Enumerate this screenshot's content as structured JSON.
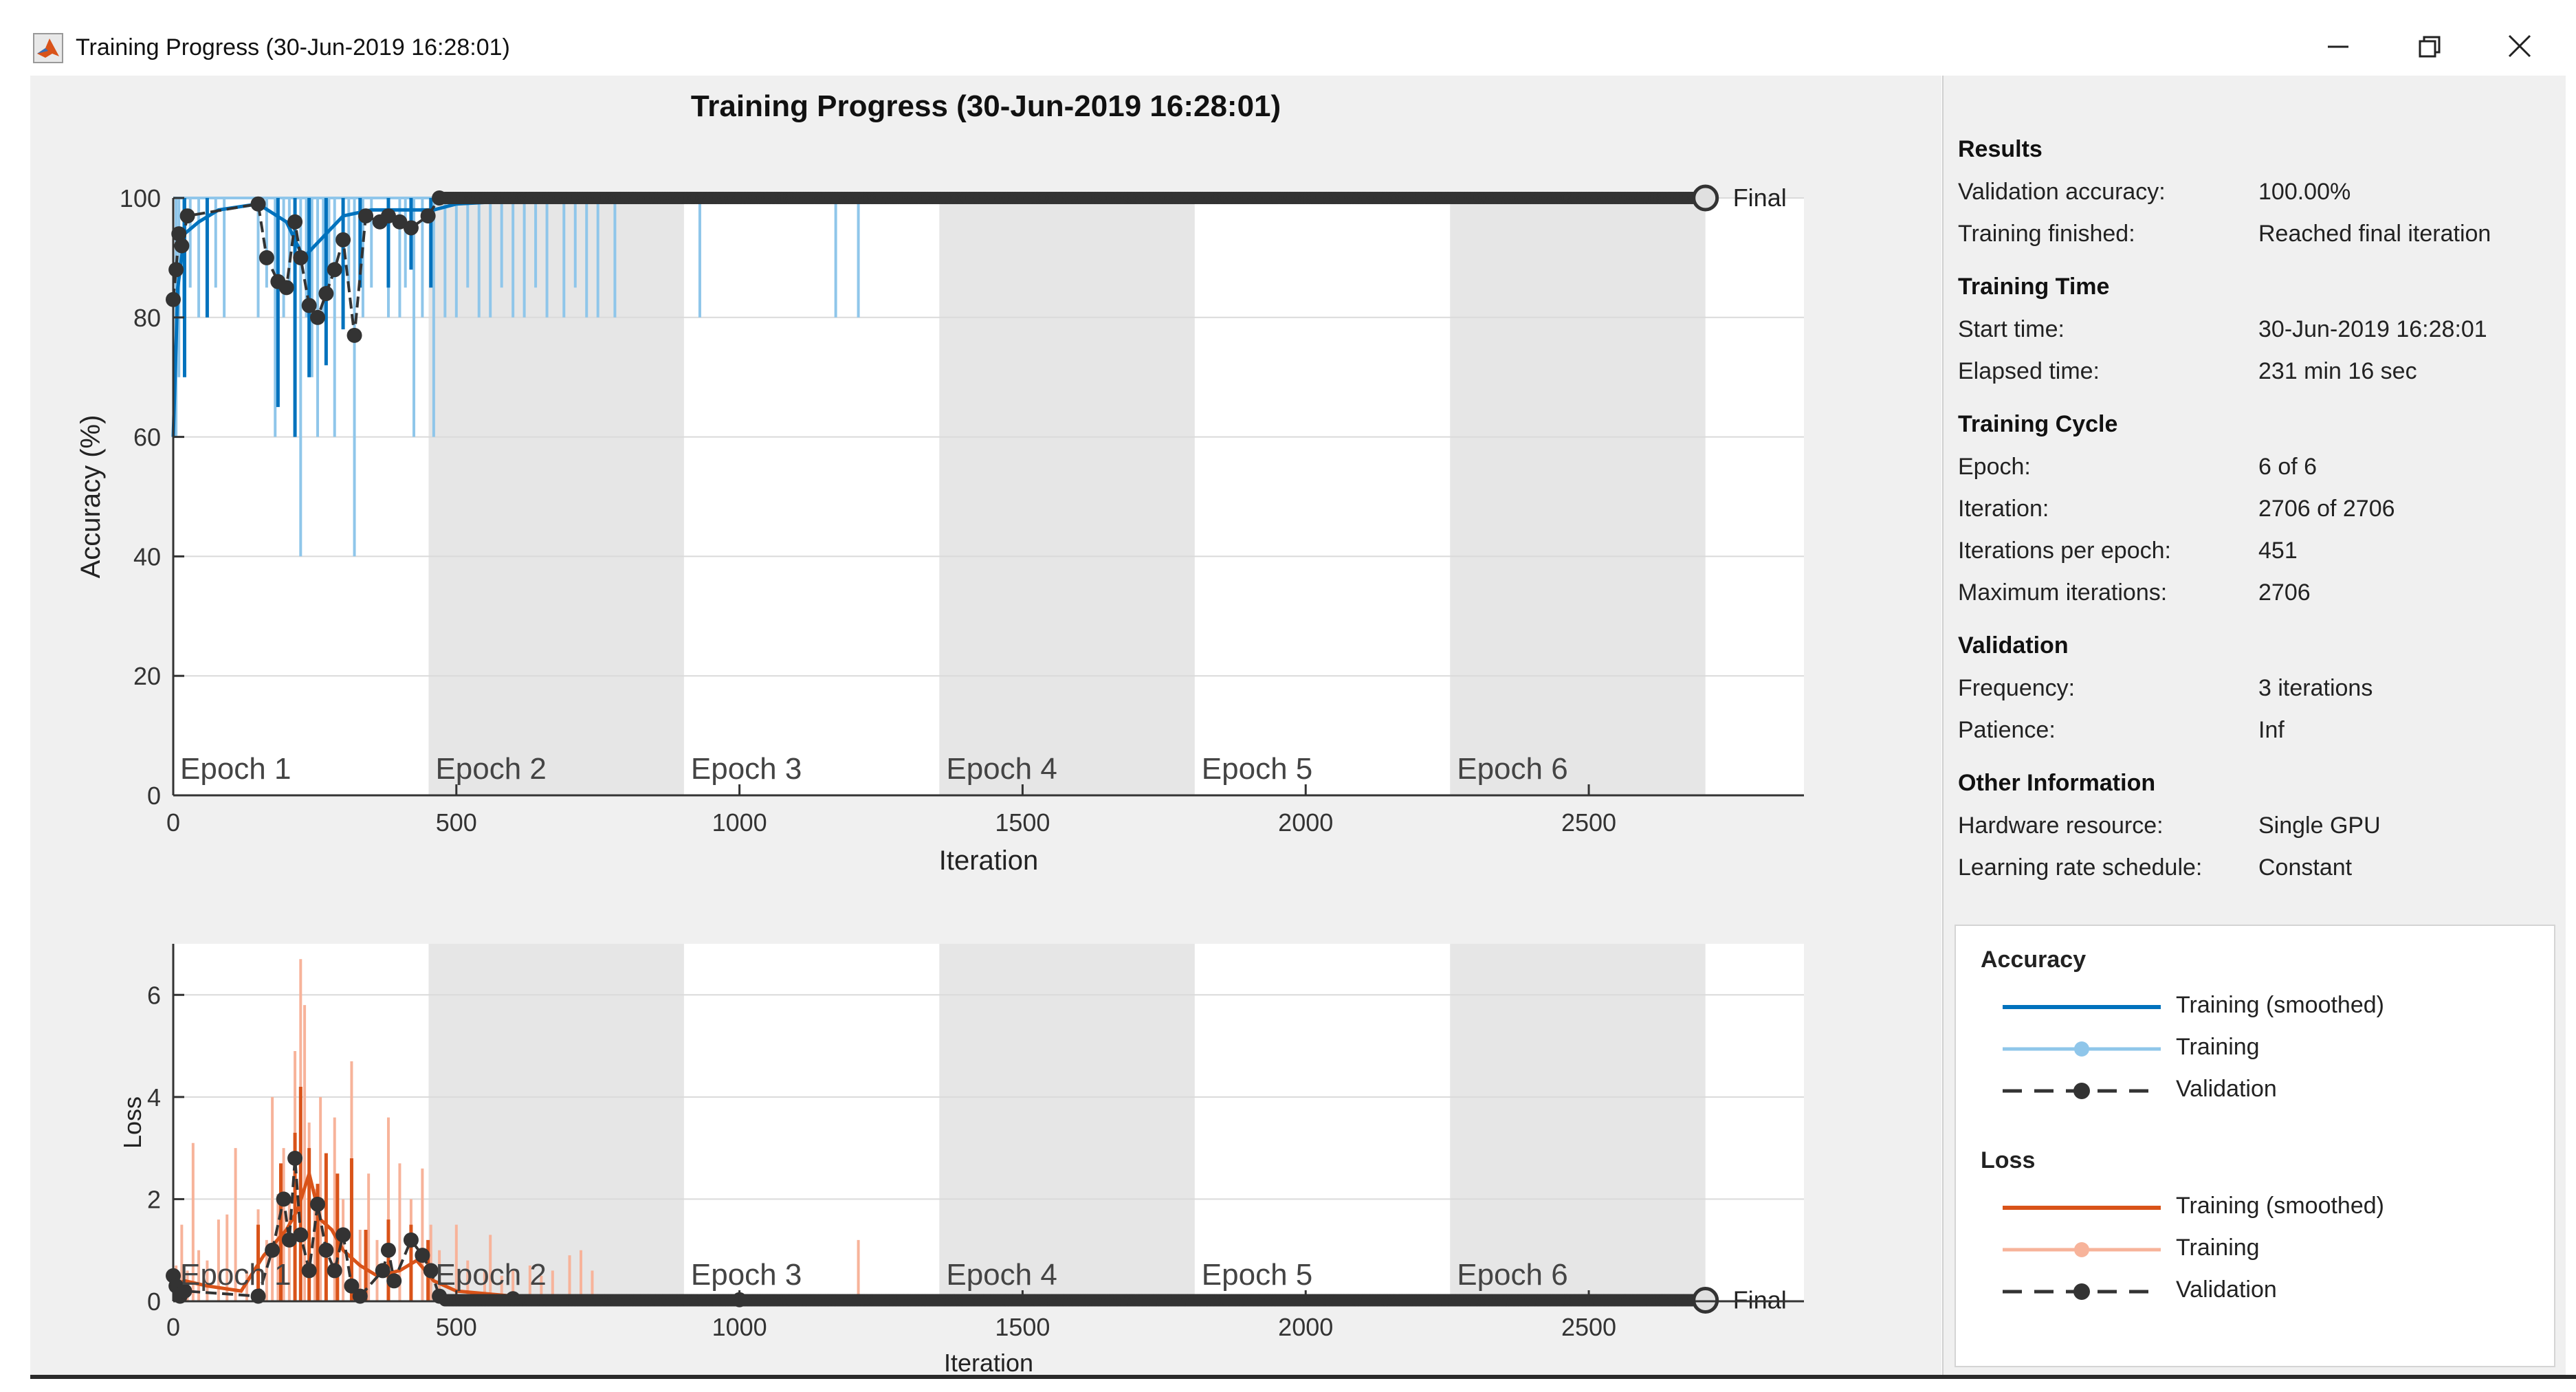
{
  "window": {
    "title": "Training Progress (30-Jun-2019 16:28:01)",
    "buttons": [
      "minimize",
      "restore",
      "close"
    ]
  },
  "figure": {
    "title": "Training Progress (30-Jun-2019 16:28:01)"
  },
  "results": {
    "sections": [
      {
        "title": "Results",
        "rows": [
          {
            "label": "Validation accuracy:",
            "value": "100.00%"
          },
          {
            "label": "Training finished:",
            "value": "Reached final iteration"
          }
        ]
      },
      {
        "title": "Training Time",
        "rows": [
          {
            "label": "Start time:",
            "value": "30-Jun-2019 16:28:01"
          },
          {
            "label": "Elapsed time:",
            "value": "231 min 16 sec"
          }
        ]
      },
      {
        "title": "Training Cycle",
        "rows": [
          {
            "label": "Epoch:",
            "value": "6 of 6"
          },
          {
            "label": "Iteration:",
            "value": "2706 of 2706"
          },
          {
            "label": "Iterations per epoch:",
            "value": "451"
          },
          {
            "label": "Maximum iterations:",
            "value": "2706"
          }
        ]
      },
      {
        "title": "Validation",
        "rows": [
          {
            "label": "Frequency:",
            "value": "3 iterations"
          },
          {
            "label": "Patience:",
            "value": "Inf"
          }
        ]
      },
      {
        "title": "Other Information",
        "rows": [
          {
            "label": "Hardware resource:",
            "value": "Single GPU"
          },
          {
            "label": "Learning rate schedule:",
            "value": "Constant"
          }
        ]
      }
    ]
  },
  "legend": {
    "groups": [
      {
        "title": "Accuracy",
        "items": [
          "Training (smoothed)",
          "Training",
          "Validation"
        ],
        "colors": [
          "#0072BD",
          "#8fc6ea",
          "#333333"
        ]
      },
      {
        "title": "Loss",
        "items": [
          "Training (smoothed)",
          "Training",
          "Validation"
        ],
        "colors": [
          "#D95319",
          "#f7b39a",
          "#333333"
        ]
      }
    ]
  },
  "chart_data": [
    {
      "type": "line",
      "xlabel": "Iteration",
      "ylabel": "Accuracy (%)",
      "xlim": [
        0,
        2880
      ],
      "ylim": [
        0,
        100
      ],
      "xticks": [
        0,
        500,
        1000,
        1500,
        2000,
        2500
      ],
      "yticks": [
        0,
        20,
        40,
        60,
        80,
        100
      ],
      "epoch_labels": [
        "Epoch 1",
        "Epoch 2",
        "Epoch 3",
        "Epoch 4",
        "Epoch 5",
        "Epoch 6"
      ],
      "iterations_per_epoch": 451,
      "final_label": "Final",
      "final_point": [
        2706,
        100
      ],
      "series": [
        {
          "name": "Training (smoothed)",
          "color": "#0072BD",
          "points": [
            [
              0,
              60
            ],
            [
              8,
              85
            ],
            [
              20,
              94
            ],
            [
              45,
              96
            ],
            [
              80,
              98
            ],
            [
              150,
              99
            ],
            [
              200,
              96
            ],
            [
              230,
              90
            ],
            [
              260,
              93
            ],
            [
              300,
              97
            ],
            [
              350,
              98
            ],
            [
              420,
              98
            ],
            [
              460,
              98
            ],
            [
              500,
              99
            ],
            [
              600,
              99.5
            ],
            [
              800,
              99.8
            ],
            [
              1000,
              100
            ],
            [
              1500,
              100
            ],
            [
              2000,
              100
            ],
            [
              2706,
              100
            ]
          ]
        },
        {
          "name": "Training",
          "color": "#8fc6ea",
          "dips": [
            [
              5,
              60
            ],
            [
              10,
              70
            ],
            [
              18,
              80
            ],
            [
              30,
              85
            ],
            [
              45,
              80
            ],
            [
              60,
              80
            ],
            [
              75,
              85
            ],
            [
              90,
              80
            ],
            [
              150,
              80
            ],
            [
              165,
              85
            ],
            [
              180,
              60
            ],
            [
              195,
              80
            ],
            [
              205,
              85
            ],
            [
              215,
              60
            ],
            [
              225,
              40
            ],
            [
              235,
              80
            ],
            [
              245,
              70
            ],
            [
              255,
              60
            ],
            [
              265,
              80
            ],
            [
              275,
              85
            ],
            [
              285,
              60
            ],
            [
              300,
              80
            ],
            [
              310,
              85
            ],
            [
              320,
              40
            ],
            [
              335,
              80
            ],
            [
              350,
              85
            ],
            [
              380,
              80
            ],
            [
              400,
              80
            ],
            [
              410,
              85
            ],
            [
              425,
              60
            ],
            [
              440,
              80
            ],
            [
              460,
              60
            ],
            [
              480,
              80
            ],
            [
              500,
              80
            ],
            [
              520,
              85
            ],
            [
              540,
              80
            ],
            [
              560,
              80
            ],
            [
              580,
              85
            ],
            [
              600,
              80
            ],
            [
              620,
              80
            ],
            [
              640,
              85
            ],
            [
              660,
              80
            ],
            [
              690,
              80
            ],
            [
              710,
              85
            ],
            [
              730,
              80
            ],
            [
              750,
              80
            ],
            [
              780,
              80
            ],
            [
              930,
              80
            ],
            [
              1170,
              80
            ],
            [
              1210,
              80
            ]
          ]
        },
        {
          "name": "Validation",
          "color": "#333333",
          "points": [
            [
              0,
              83
            ],
            [
              5,
              88
            ],
            [
              10,
              94
            ],
            [
              15,
              92
            ],
            [
              25,
              97
            ],
            [
              150,
              99
            ],
            [
              165,
              90
            ],
            [
              185,
              86
            ],
            [
              200,
              85
            ],
            [
              215,
              96
            ],
            [
              225,
              90
            ],
            [
              240,
              82
            ],
            [
              255,
              80
            ],
            [
              270,
              84
            ],
            [
              285,
              88
            ],
            [
              300,
              93
            ],
            [
              320,
              77
            ],
            [
              340,
              97
            ],
            [
              365,
              96
            ],
            [
              380,
              97
            ],
            [
              400,
              96
            ],
            [
              420,
              95
            ],
            [
              450,
              97
            ],
            [
              470,
              100
            ],
            [
              2706,
              100
            ]
          ]
        }
      ]
    },
    {
      "type": "line",
      "xlabel": "Iteration",
      "ylabel": "Loss",
      "xlim": [
        0,
        2880
      ],
      "ylim": [
        0,
        7
      ],
      "xticks": [
        0,
        500,
        1000,
        1500,
        2000,
        2500
      ],
      "yticks": [
        0,
        2,
        4,
        6
      ],
      "epoch_labels": [
        "Epoch 1",
        "Epoch 2",
        "Epoch 3",
        "Epoch 4",
        "Epoch 5",
        "Epoch 6"
      ],
      "iterations_per_epoch": 451,
      "final_label": "Final",
      "final_point": [
        2706,
        0.02
      ],
      "series": [
        {
          "name": "Training (smoothed)",
          "color": "#D95319",
          "points": [
            [
              0,
              0.3
            ],
            [
              20,
              0.4
            ],
            [
              60,
              0.3
            ],
            [
              120,
              0.2
            ],
            [
              160,
              0.9
            ],
            [
              200,
              1.4
            ],
            [
              220,
              1.8
            ],
            [
              240,
              2.5
            ],
            [
              260,
              1.6
            ],
            [
              280,
              1.4
            ],
            [
              300,
              1.0
            ],
            [
              330,
              0.7
            ],
            [
              360,
              0.5
            ],
            [
              400,
              0.6
            ],
            [
              430,
              0.8
            ],
            [
              460,
              0.4
            ],
            [
              500,
              0.2
            ],
            [
              600,
              0.1
            ],
            [
              750,
              0.05
            ],
            [
              1000,
              0.02
            ],
            [
              2706,
              0.02
            ]
          ]
        },
        {
          "name": "Training",
          "color": "#f7b39a",
          "spikes": [
            [
              5,
              0.7
            ],
            [
              15,
              1.5
            ],
            [
              25,
              0.6
            ],
            [
              35,
              3.1
            ],
            [
              45,
              1.0
            ],
            [
              60,
              0.8
            ],
            [
              80,
              1.6
            ],
            [
              95,
              1.7
            ],
            [
              110,
              3.0
            ],
            [
              130,
              0.6
            ],
            [
              150,
              1.8
            ],
            [
              165,
              1.2
            ],
            [
              175,
              4.0
            ],
            [
              185,
              2.1
            ],
            [
              195,
              3.0
            ],
            [
              205,
              2.0
            ],
            [
              215,
              4.9
            ],
            [
              225,
              6.7
            ],
            [
              232,
              5.8
            ],
            [
              240,
              3.5
            ],
            [
              250,
              2.2
            ],
            [
              260,
              4.0
            ],
            [
              270,
              2.5
            ],
            [
              285,
              3.6
            ],
            [
              300,
              2.0
            ],
            [
              315,
              4.7
            ],
            [
              330,
              1.4
            ],
            [
              345,
              2.5
            ],
            [
              360,
              1.2
            ],
            [
              380,
              3.6
            ],
            [
              400,
              2.7
            ],
            [
              420,
              2.0
            ],
            [
              440,
              2.6
            ],
            [
              455,
              1.5
            ],
            [
              470,
              1.0
            ],
            [
              500,
              1.5
            ],
            [
              520,
              0.8
            ],
            [
              550,
              0.6
            ],
            [
              560,
              1.3
            ],
            [
              580,
              0.5
            ],
            [
              600,
              0.6
            ],
            [
              630,
              0.7
            ],
            [
              650,
              0.5
            ],
            [
              670,
              0.6
            ],
            [
              700,
              0.9
            ],
            [
              720,
              1.0
            ],
            [
              740,
              0.6
            ],
            [
              1210,
              1.2
            ]
          ]
        },
        {
          "name": "Validation",
          "color": "#333333",
          "points": [
            [
              0,
              0.5
            ],
            [
              5,
              0.3
            ],
            [
              12,
              0.1
            ],
            [
              20,
              0.2
            ],
            [
              150,
              0.1
            ],
            [
              175,
              1.0
            ],
            [
              195,
              2.0
            ],
            [
              205,
              1.2
            ],
            [
              215,
              2.8
            ],
            [
              225,
              1.3
            ],
            [
              240,
              0.6
            ],
            [
              255,
              1.9
            ],
            [
              270,
              1.0
            ],
            [
              285,
              0.6
            ],
            [
              300,
              1.3
            ],
            [
              315,
              0.3
            ],
            [
              330,
              0.1
            ],
            [
              370,
              0.6
            ],
            [
              380,
              1.0
            ],
            [
              390,
              0.4
            ],
            [
              420,
              1.2
            ],
            [
              440,
              0.9
            ],
            [
              455,
              0.6
            ],
            [
              470,
              0.1
            ],
            [
              600,
              0.05
            ],
            [
              1000,
              0.03
            ],
            [
              2706,
              0.02
            ]
          ]
        }
      ]
    }
  ]
}
